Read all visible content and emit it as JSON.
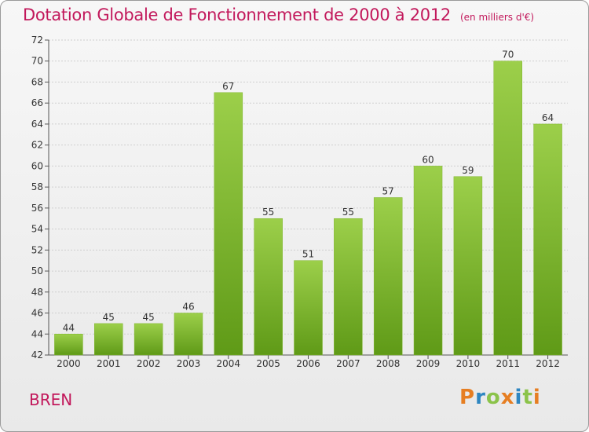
{
  "title": "Dotation Globale de Fonctionnement de 2000 à 2012",
  "subtitle": "(en milliers d'€)",
  "commune": "BREN",
  "logo": {
    "text": "Proxiti",
    "letters": [
      {
        "ch": "P",
        "color": "#e67e22"
      },
      {
        "ch": "r",
        "color": "#2e86c1"
      },
      {
        "ch": "o",
        "color": "#8bc34a"
      },
      {
        "ch": "x",
        "color": "#e67e22"
      },
      {
        "ch": "i",
        "color": "#2e86c1"
      },
      {
        "ch": "t",
        "color": "#8bc34a"
      },
      {
        "ch": "i",
        "color": "#e67e22"
      }
    ]
  },
  "colors": {
    "accent": "#c2185b",
    "bar_top": "#9ccf4a",
    "bar_bottom": "#5f9a17",
    "grid": "#cfcfcf"
  },
  "chart_data": {
    "type": "bar",
    "categories": [
      "2000",
      "2001",
      "2002",
      "2003",
      "2004",
      "2005",
      "2006",
      "2007",
      "2008",
      "2009",
      "2010",
      "2011",
      "2012"
    ],
    "values": [
      44,
      45,
      45,
      46,
      67,
      55,
      51,
      55,
      57,
      60,
      59,
      70,
      64
    ],
    "ylim": [
      42,
      72
    ],
    "yticks": [
      42,
      44,
      46,
      48,
      50,
      52,
      54,
      56,
      58,
      60,
      62,
      64,
      66,
      68,
      70,
      72
    ],
    "grid": true,
    "xlabel": "",
    "ylabel": ""
  }
}
